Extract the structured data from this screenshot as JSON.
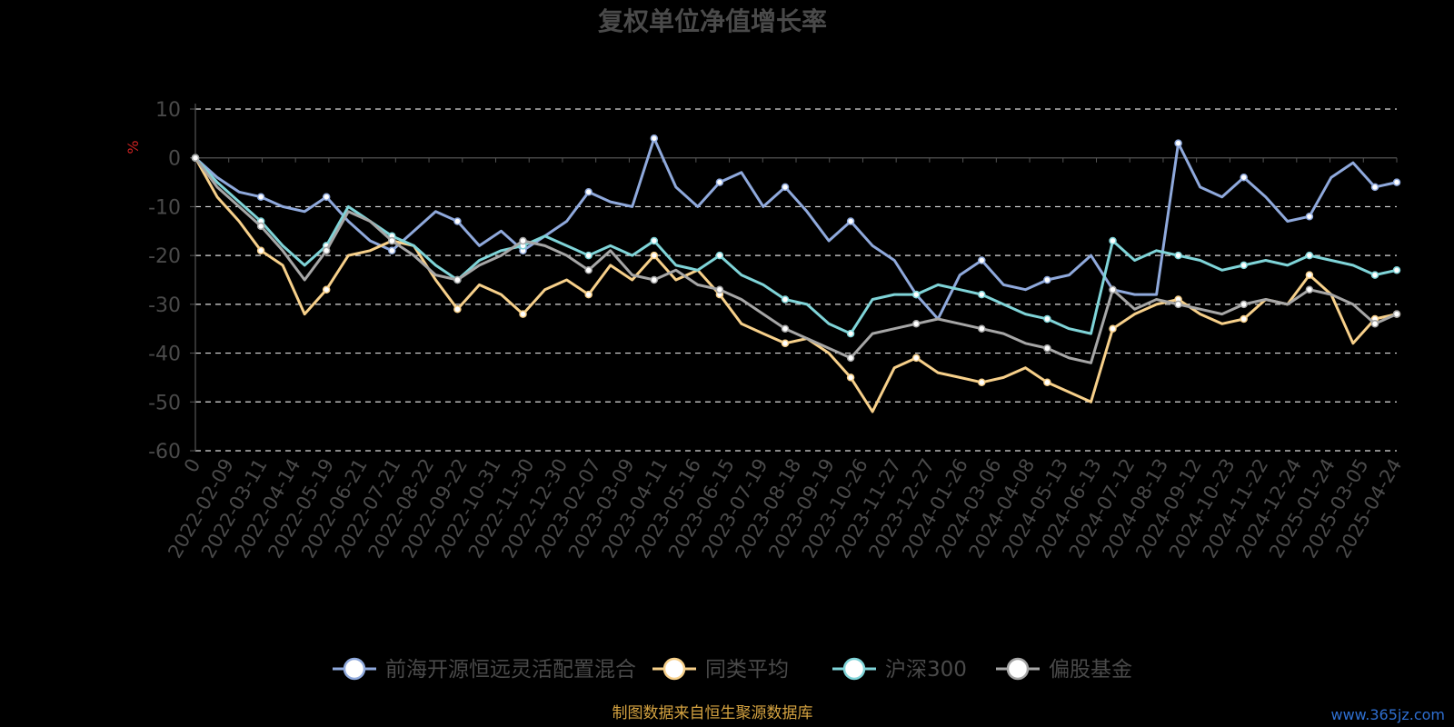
{
  "chart_data": {
    "type": "line",
    "title": "复权单位净值增长率",
    "ylabel": "%",
    "xlabel": "",
    "ylim": [
      -60,
      10
    ],
    "yticks": [
      10,
      0,
      -10,
      -20,
      -30,
      -40,
      -50,
      -60
    ],
    "xticks": [
      "0",
      "2022-02-09",
      "2022-03-11",
      "2022-04-14",
      "2022-05-19",
      "2022-06-21",
      "2022-07-21",
      "2022-08-22",
      "2022-09-22",
      "2022-10-31",
      "2022-11-30",
      "2022-12-30",
      "2023-02-07",
      "2023-03-09",
      "2023-04-11",
      "2023-05-16",
      "2023-06-15",
      "2023-07-19",
      "2023-08-18",
      "2023-09-19",
      "2023-10-26",
      "2023-11-27",
      "2023-12-27",
      "2024-01-26",
      "2024-03-06",
      "2024-04-08",
      "2024-05-13",
      "2024-06-13",
      "2024-07-12",
      "2024-08-13",
      "2024-09-12",
      "2024-10-23",
      "2024-11-22",
      "2024-12-24",
      "2025-01-24",
      "2025-03-05",
      "2025-04-24"
    ],
    "grid": true,
    "legend_position": "bottom",
    "series": [
      {
        "name": "前海开源恒远灵活配置混合",
        "color": "#8fa9dc",
        "values": [
          0,
          -4,
          -7,
          -8,
          -10,
          -11,
          -8,
          -13,
          -17,
          -19,
          -15,
          -11,
          -13,
          -18,
          -15,
          -19,
          -16,
          -13,
          -7,
          -9,
          -10,
          4,
          -6,
          -10,
          -5,
          -3,
          -10,
          -6,
          -11,
          -17,
          -13,
          -18,
          -21,
          -28,
          -33,
          -24,
          -21,
          -26,
          -27,
          -25,
          -24,
          -20,
          -27,
          -28,
          -28,
          3,
          -6,
          -8,
          -4,
          -8,
          -13,
          -12,
          -4,
          -1,
          -6,
          -5
        ]
      },
      {
        "name": "同类平均",
        "color": "#f7d08a",
        "values": [
          0,
          -8,
          -13,
          -19,
          -22,
          -32,
          -27,
          -20,
          -19,
          -17,
          -18,
          -25,
          -31,
          -26,
          -28,
          -32,
          -27,
          -25,
          -28,
          -22,
          -25,
          -20,
          -25,
          -23,
          -28,
          -34,
          -36,
          -38,
          -37,
          -40,
          -45,
          -52,
          -43,
          -41,
          -44,
          -45,
          -46,
          -45,
          -43,
          -46,
          -48,
          -50,
          -35,
          -32,
          -30,
          -29,
          -32,
          -34,
          -33,
          -29,
          -30,
          -24,
          -28,
          -38,
          -33,
          -32
        ]
      },
      {
        "name": "沪深300",
        "color": "#7fd4d8",
        "values": [
          0,
          -5,
          -9,
          -13,
          -18,
          -22,
          -18,
          -10,
          -13,
          -16,
          -18,
          -22,
          -25,
          -21,
          -19,
          -18,
          -16,
          -18,
          -20,
          -18,
          -20,
          -17,
          -22,
          -23,
          -20,
          -24,
          -26,
          -29,
          -30,
          -34,
          -36,
          -29,
          -28,
          -28,
          -26,
          -27,
          -28,
          -30,
          -32,
          -33,
          -35,
          -36,
          -17,
          -21,
          -19,
          -20,
          -21,
          -23,
          -22,
          -21,
          -22,
          -20,
          -21,
          -22,
          -24,
          -23
        ]
      },
      {
        "name": "偏股基金",
        "color": "#a6a6a6",
        "values": [
          0,
          -6,
          -10,
          -14,
          -19,
          -25,
          -19,
          -11,
          -13,
          -17,
          -20,
          -24,
          -25,
          -22,
          -20,
          -17,
          -18,
          -20,
          -23,
          -19,
          -24,
          -25,
          -23,
          -26,
          -27,
          -29,
          -32,
          -35,
          -37,
          -39,
          -41,
          -36,
          -35,
          -34,
          -33,
          -34,
          -35,
          -36,
          -38,
          -39,
          -41,
          -42,
          -27,
          -31,
          -29,
          -30,
          -31,
          -32,
          -30,
          -29,
          -30,
          -27,
          -28,
          -30,
          -34,
          -32
        ]
      }
    ]
  },
  "source_note": "制图数据来自恒生聚源数据库",
  "watermark": "www.365jz.com"
}
